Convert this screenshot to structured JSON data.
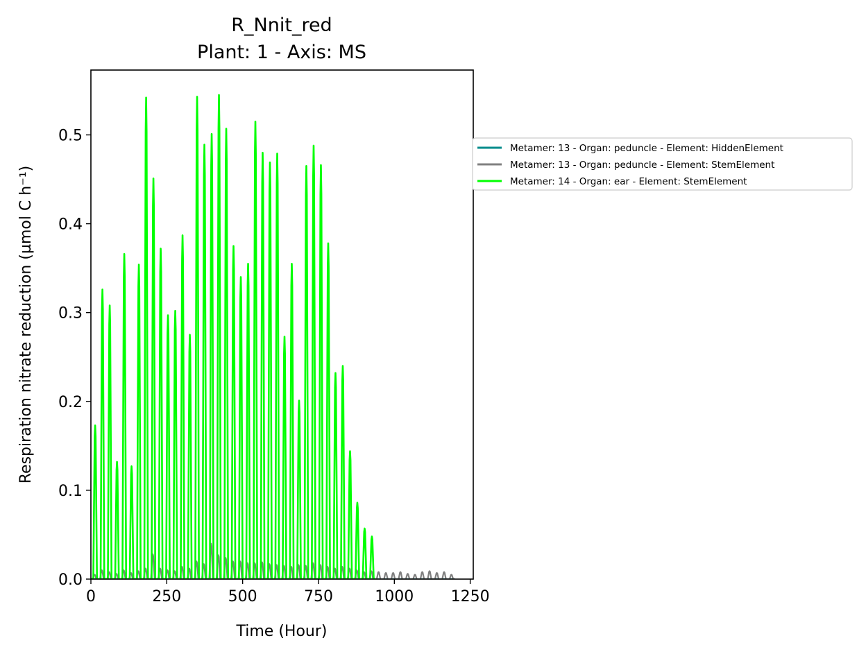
{
  "chart_data": {
    "type": "line",
    "title": "R_Nnit_red",
    "subtitle": "Plant: 1 - Axis: MS",
    "xlabel": "Time (Hour)",
    "ylabel": "Respiration nitrate reduction (µmol C h⁻¹)",
    "xlim": [
      0,
      1260
    ],
    "ylim": [
      0,
      0.573
    ],
    "xticks": [
      0,
      250,
      500,
      750,
      1000,
      1250
    ],
    "xtick_labels": [
      "0",
      "250",
      "500",
      "750",
      "1000",
      "1250"
    ],
    "yticks": [
      0.0,
      0.1,
      0.2,
      0.3,
      0.4,
      0.5
    ],
    "ytick_labels": [
      "0.0",
      "0.1",
      "0.2",
      "0.3",
      "0.4",
      "0.5"
    ],
    "grid": false,
    "legend_position": "outside right",
    "series": [
      {
        "name": "Metamer: 13 - Organ: peduncle - Element: HiddenElement",
        "color": "#008b8b",
        "x": [
          0,
          1200
        ],
        "y": [
          0,
          0
        ]
      },
      {
        "name": "Metamer: 13 - Organ: peduncle - Element: StemElement",
        "color": "#808080",
        "peaks_x": [
          12,
          36,
          60,
          84,
          108,
          132,
          156,
          180,
          204,
          228,
          252,
          276,
          300,
          324,
          348,
          372,
          396,
          420,
          444,
          468,
          492,
          516,
          540,
          564,
          588,
          612,
          636,
          660,
          684,
          708,
          732,
          756,
          780,
          804,
          828,
          852,
          876,
          900,
          924,
          948,
          972,
          996,
          1020,
          1044,
          1068,
          1092,
          1116,
          1140,
          1164,
          1188
        ],
        "peaks_y": [
          0.005,
          0.01,
          0.008,
          0.006,
          0.01,
          0.007,
          0.009,
          0.012,
          0.028,
          0.012,
          0.01,
          0.009,
          0.014,
          0.012,
          0.02,
          0.017,
          0.04,
          0.027,
          0.024,
          0.02,
          0.02,
          0.018,
          0.018,
          0.019,
          0.017,
          0.016,
          0.015,
          0.014,
          0.016,
          0.015,
          0.018,
          0.016,
          0.014,
          0.012,
          0.014,
          0.012,
          0.01,
          0.008,
          0.009,
          0.008,
          0.007,
          0.007,
          0.008,
          0.006,
          0.005,
          0.008,
          0.009,
          0.007,
          0.008,
          0.005
        ]
      },
      {
        "name": "Metamer: 14 - Organ: ear - Element: StemElement",
        "color": "#00ff00",
        "peaks_x": [
          14,
          38,
          62,
          86,
          110,
          134,
          158,
          182,
          206,
          230,
          254,
          278,
          302,
          326,
          350,
          374,
          398,
          422,
          446,
          470,
          494,
          518,
          542,
          566,
          590,
          614,
          638,
          662,
          686,
          710,
          734,
          758,
          782,
          806,
          830,
          854,
          878,
          902,
          926
        ],
        "peaks_y": [
          0.173,
          0.326,
          0.308,
          0.132,
          0.366,
          0.127,
          0.354,
          0.542,
          0.451,
          0.372,
          0.297,
          0.302,
          0.387,
          0.275,
          0.543,
          0.489,
          0.501,
          0.545,
          0.507,
          0.375,
          0.34,
          0.355,
          0.515,
          0.48,
          0.469,
          0.479,
          0.273,
          0.355,
          0.201,
          0.465,
          0.488,
          0.466,
          0.378,
          0.232,
          0.24,
          0.144,
          0.086,
          0.057,
          0.048
        ]
      }
    ]
  }
}
